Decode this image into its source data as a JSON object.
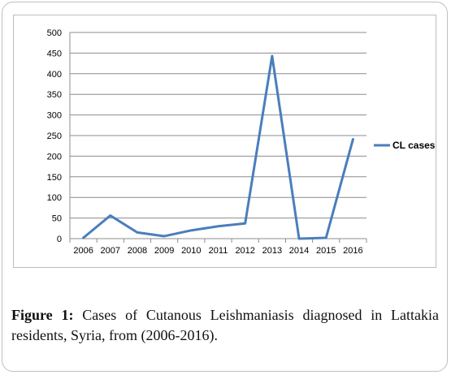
{
  "caption": {
    "label": "Figure 1:",
    "text": " Cases of Cutanous Leishmaniasis diagnosed in Lattakia residents, Syria, from (2006-2016)."
  },
  "colors": {
    "series": "#4a7ebb",
    "grid": "#8c8c8c",
    "axis": "#8c8c8c"
  },
  "chart_data": {
    "type": "line",
    "x": [
      "2006",
      "2007",
      "2008",
      "2009",
      "2010",
      "2011",
      "2012",
      "2013",
      "2014",
      "2015",
      "2016"
    ],
    "series": [
      {
        "name": "CL cases",
        "values": [
          2,
          56,
          15,
          6,
          20,
          30,
          37,
          443,
          0,
          2,
          241
        ]
      }
    ],
    "ylim": [
      0,
      500
    ],
    "yticks": [
      0,
      50,
      100,
      150,
      200,
      250,
      300,
      350,
      400,
      450,
      500
    ],
    "grid": true,
    "legend": "right"
  }
}
